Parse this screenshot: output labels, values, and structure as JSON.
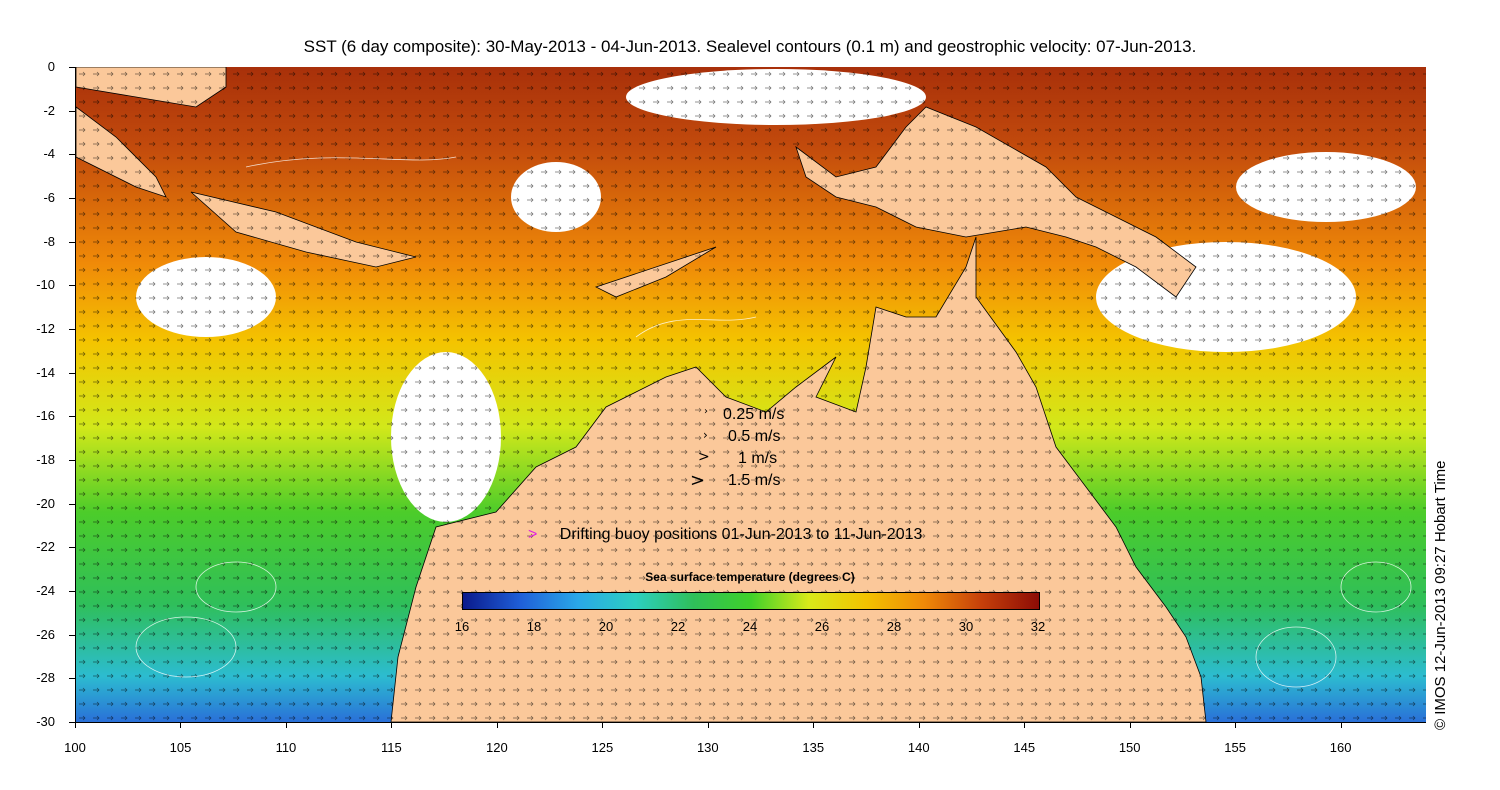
{
  "title": "SST (6 day composite): 30-May-2013 - 04-Jun-2013. Sealevel contours (0.1 m) and geostrophic velocity: 07-Jun-2013.",
  "y_axis": {
    "ticks": [
      "0",
      "-2",
      "-4",
      "-6",
      "-8",
      "-10",
      "-12",
      "-14",
      "-16",
      "-18",
      "-20",
      "-22",
      "-24",
      "-26",
      "-28",
      "-30"
    ]
  },
  "x_axis": {
    "ticks": [
      "100",
      "105",
      "110",
      "115",
      "120",
      "125",
      "130",
      "135",
      "140",
      "145",
      "150",
      "155",
      "160"
    ]
  },
  "velocity_legend": [
    {
      "label": "0.25 m/s",
      "glyph": "›"
    },
    {
      "label": "0.5 m/s",
      "glyph": "›"
    },
    {
      "label": "1 m/s",
      "glyph": ">"
    },
    {
      "label": "1.5 m/s",
      "glyph": ">"
    }
  ],
  "buoy_legend": {
    "symbol": ">",
    "label": "Drifting buoy positions 01-Jun-2013 to 11-Jun-2013",
    "color": "#e020e0"
  },
  "colorbar": {
    "title": "Sea surface temperature (degrees C)",
    "ticks": [
      "16",
      "18",
      "20",
      "22",
      "24",
      "26",
      "28",
      "30",
      "32"
    ],
    "colors": [
      "#0a1a8c",
      "#1f5fd8",
      "#2aa8e8",
      "#2ccfc0",
      "#2fbf5a",
      "#3fd12a",
      "#d8ea1a",
      "#f2c200",
      "#ef8a08",
      "#c6400a",
      "#8c0c06"
    ]
  },
  "credit": "© IMOS 12-Jun-2013 09:27 Hobart Time",
  "colors": {
    "land": "#fbc89a",
    "cloud": "#ffffff",
    "contour": "#ffffff"
  }
}
